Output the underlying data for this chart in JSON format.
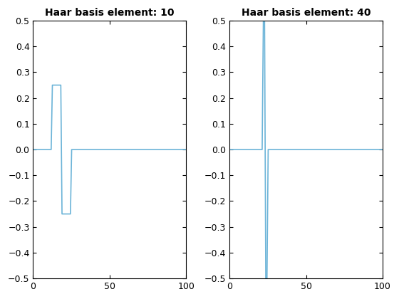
{
  "title1": "Haar basis element: 10",
  "title2": "Haar basis element: 40",
  "n_points": 128,
  "element1": 10,
  "element2": 40,
  "ylim": [
    -0.5,
    0.5
  ],
  "xlim": [
    0,
    100
  ],
  "line_color": "#6cb4d8",
  "line_width": 1.2,
  "background_color": "#ffffff",
  "yticks": [
    -0.5,
    -0.4,
    -0.3,
    -0.2,
    -0.1,
    0.0,
    0.1,
    0.2,
    0.3,
    0.4,
    0.5
  ],
  "xticks": [
    0,
    50,
    100
  ],
  "title_fontsize": 10,
  "tick_fontsize": 9
}
